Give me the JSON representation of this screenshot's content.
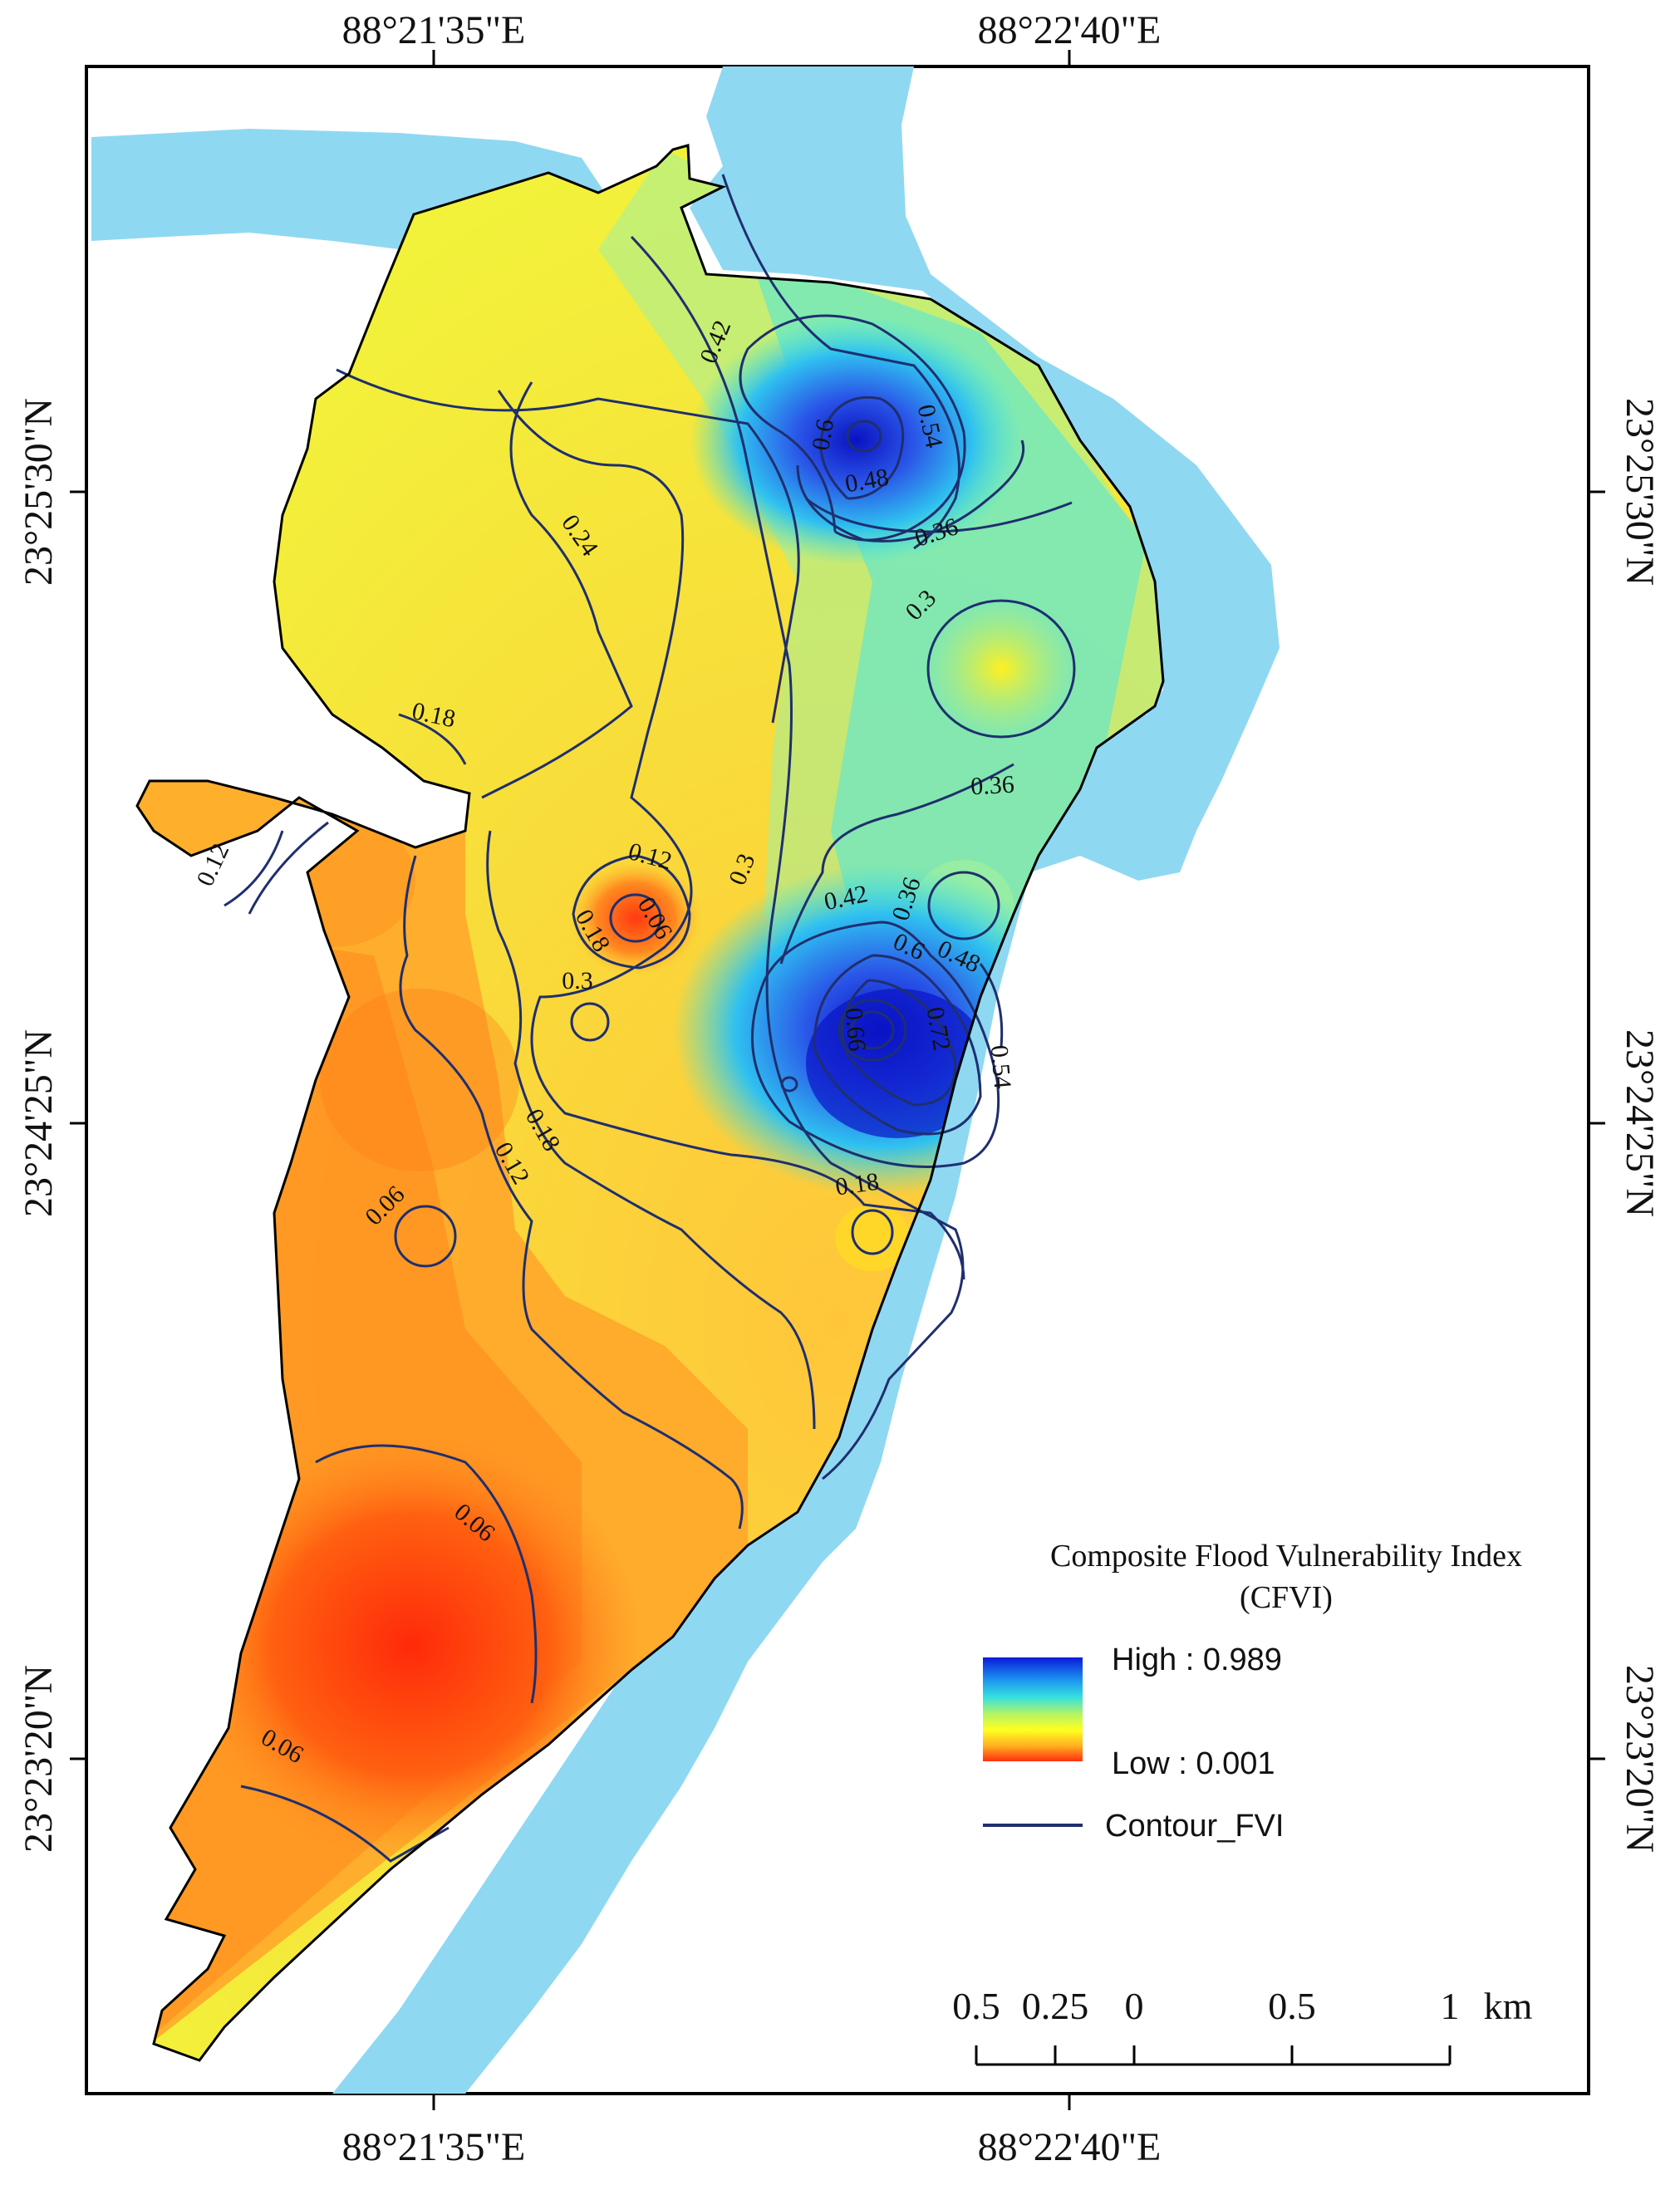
{
  "coords": {
    "lon_left": "88°21'35\"E",
    "lon_right": "88°22'40\"E",
    "lat_top": "23°25'30\"N",
    "lat_mid": "23°24'25\"N",
    "lat_bottom": "23°23'20\"N"
  },
  "contour_labels": [
    "0.42",
    "0.6",
    "0.54",
    "0.48",
    "0.36",
    "0.3",
    "0.24",
    "0.18",
    "0.36",
    "0.12",
    "0.12",
    "0.06",
    "0.18",
    "0.3",
    "0.42",
    "0.36",
    "0.6",
    "0.48",
    "0.66",
    "0.72",
    "0.54",
    "0.3",
    "0.18",
    "0.12",
    "0.18",
    "0.06",
    "0.06",
    "0.06"
  ],
  "legend": {
    "title_line1": "Composite Flood Vulnerability Index",
    "title_line2": "(CFVI)",
    "high": "High : 0.989",
    "low": "Low : 0.001",
    "contour": "Contour_FVI",
    "gradient_colors": [
      "#0a1ad8",
      "#1a8cf0",
      "#35e0e0",
      "#b8f560",
      "#ffff20",
      "#ffb020",
      "#ff3010"
    ]
  },
  "scale_bar": {
    "labels": [
      "0.5",
      "0.25",
      "0",
      "0.5",
      "1",
      "km"
    ]
  },
  "colors": {
    "water": "#8fd8f2",
    "frame": "#000000",
    "contour_line": "#1f2f6e"
  }
}
